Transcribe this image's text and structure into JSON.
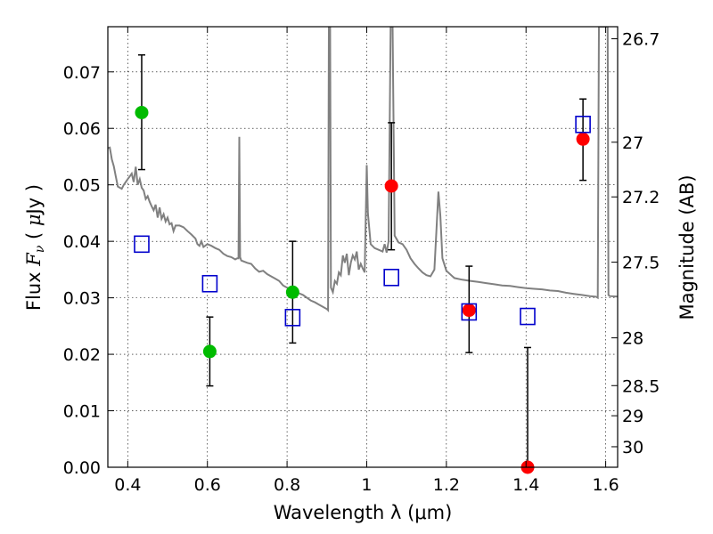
{
  "chart_data": {
    "type": "scatter",
    "xlabel": "Wavelength  λ (μm)",
    "ylabel_parts": [
      "Flux  ",
      "F",
      "ν",
      "  ( ",
      "μ",
      "Jy )"
    ],
    "y2label": "Magnitude (AB)",
    "xlim": [
      0.35,
      1.63
    ],
    "ylim": [
      0.0,
      0.078
    ],
    "grid": true,
    "x_ticks": [
      {
        "v": 0.4,
        "label": "0.4"
      },
      {
        "v": 0.6,
        "label": "0.6"
      },
      {
        "v": 0.8,
        "label": "0.8"
      },
      {
        "v": 1.0,
        "label": "1"
      },
      {
        "v": 1.2,
        "label": "1.2"
      },
      {
        "v": 1.4,
        "label": "1.4"
      },
      {
        "v": 1.6,
        "label": "1.6"
      }
    ],
    "y_ticks": [
      {
        "v": 0.0,
        "label": "0.00"
      },
      {
        "v": 0.01,
        "label": "0.01"
      },
      {
        "v": 0.02,
        "label": "0.02"
      },
      {
        "v": 0.03,
        "label": "0.03"
      },
      {
        "v": 0.04,
        "label": "0.04"
      },
      {
        "v": 0.05,
        "label": "0.05"
      },
      {
        "v": 0.06,
        "label": "0.06"
      },
      {
        "v": 0.07,
        "label": "0.07"
      }
    ],
    "y2_ticks": [
      {
        "mag": 26.7,
        "label": "26.7"
      },
      {
        "mag": 27.0,
        "label": "27"
      },
      {
        "mag": 27.2,
        "label": "27.2"
      },
      {
        "mag": 27.5,
        "label": "27.5"
      },
      {
        "mag": 28.0,
        "label": "28"
      },
      {
        "mag": 28.5,
        "label": "28.5"
      },
      {
        "mag": 29.0,
        "label": "29"
      },
      {
        "mag": 30.0,
        "label": "30"
      }
    ],
    "series": [
      {
        "marker": "circle",
        "color": "#00bb00",
        "points": [
          {
            "x": 0.435,
            "y": 0.0628,
            "lo": 0.0527,
            "hi": 0.073
          },
          {
            "x": 0.606,
            "y": 0.0205,
            "lo": 0.0144,
            "hi": 0.0266
          },
          {
            "x": 0.814,
            "y": 0.031,
            "lo": 0.022,
            "hi": 0.04
          }
        ]
      },
      {
        "marker": "circle",
        "color": "#ff0000",
        "points": [
          {
            "x": 1.062,
            "y": 0.0498,
            "lo": 0.0385,
            "hi": 0.061
          },
          {
            "x": 1.257,
            "y": 0.0278,
            "lo": 0.0203,
            "hi": 0.0356
          },
          {
            "x": 1.404,
            "y": 0.0,
            "lo": 0.0,
            "hi": 0.0212
          },
          {
            "x": 1.543,
            "y": 0.0581,
            "lo": 0.0508,
            "hi": 0.0652
          }
        ]
      },
      {
        "marker": "open-square",
        "color": "#0000cc",
        "points": [
          {
            "x": 0.435,
            "y": 0.0395
          },
          {
            "x": 0.606,
            "y": 0.0325
          },
          {
            "x": 0.814,
            "y": 0.0265
          },
          {
            "x": 1.062,
            "y": 0.0336
          },
          {
            "x": 1.257,
            "y": 0.0275
          },
          {
            "x": 1.404,
            "y": 0.0267
          },
          {
            "x": 1.543,
            "y": 0.0607
          }
        ]
      }
    ],
    "model_sed": {
      "color": "#808080",
      "points": [
        [
          0.35,
          0.0565
        ],
        [
          0.355,
          0.0566
        ],
        [
          0.36,
          0.0545
        ],
        [
          0.365,
          0.0533
        ],
        [
          0.37,
          0.0515
        ],
        [
          0.375,
          0.0497
        ],
        [
          0.38,
          0.0495
        ],
        [
          0.385,
          0.0493
        ],
        [
          0.39,
          0.05
        ],
        [
          0.395,
          0.0505
        ],
        [
          0.4,
          0.051
        ],
        [
          0.405,
          0.0515
        ],
        [
          0.41,
          0.052
        ],
        [
          0.415,
          0.0505
        ],
        [
          0.42,
          0.0532
        ],
        [
          0.425,
          0.05
        ],
        [
          0.43,
          0.051
        ],
        [
          0.435,
          0.0495
        ],
        [
          0.44,
          0.049
        ],
        [
          0.445,
          0.0475
        ],
        [
          0.45,
          0.048
        ],
        [
          0.455,
          0.047
        ],
        [
          0.46,
          0.0462
        ],
        [
          0.465,
          0.0455
        ],
        [
          0.47,
          0.0465
        ],
        [
          0.475,
          0.0442
        ],
        [
          0.48,
          0.046
        ],
        [
          0.485,
          0.044
        ],
        [
          0.49,
          0.0448
        ],
        [
          0.495,
          0.0435
        ],
        [
          0.5,
          0.0442
        ],
        [
          0.505,
          0.043
        ],
        [
          0.51,
          0.0432
        ],
        [
          0.515,
          0.0418
        ],
        [
          0.52,
          0.0428
        ],
        [
          0.53,
          0.0428
        ],
        [
          0.54,
          0.0425
        ],
        [
          0.55,
          0.0418
        ],
        [
          0.56,
          0.0412
        ],
        [
          0.57,
          0.0405
        ],
        [
          0.575,
          0.0395
        ],
        [
          0.58,
          0.0392
        ],
        [
          0.585,
          0.04
        ],
        [
          0.59,
          0.039
        ],
        [
          0.6,
          0.0395
        ],
        [
          0.61,
          0.0392
        ],
        [
          0.62,
          0.0388
        ],
        [
          0.63,
          0.0385
        ],
        [
          0.64,
          0.0378
        ],
        [
          0.65,
          0.0374
        ],
        [
          0.66,
          0.0372
        ],
        [
          0.67,
          0.0368
        ],
        [
          0.675,
          0.037
        ],
        [
          0.678,
          0.037
        ],
        [
          0.68,
          0.0585
        ],
        [
          0.682,
          0.0372
        ],
        [
          0.685,
          0.0366
        ],
        [
          0.7,
          0.0362
        ],
        [
          0.71,
          0.036
        ],
        [
          0.72,
          0.0352
        ],
        [
          0.73,
          0.0346
        ],
        [
          0.74,
          0.0348
        ],
        [
          0.75,
          0.0342
        ],
        [
          0.76,
          0.0338
        ],
        [
          0.77,
          0.0334
        ],
        [
          0.78,
          0.033
        ],
        [
          0.79,
          0.0322
        ],
        [
          0.8,
          0.0318
        ],
        [
          0.81,
          0.0315
        ],
        [
          0.82,
          0.0312
        ],
        [
          0.83,
          0.0308
        ],
        [
          0.84,
          0.0305
        ],
        [
          0.85,
          0.03
        ],
        [
          0.86,
          0.0295
        ],
        [
          0.87,
          0.0292
        ],
        [
          0.88,
          0.0288
        ],
        [
          0.89,
          0.0284
        ],
        [
          0.9,
          0.028
        ],
        [
          0.903,
          0.0278
        ],
        [
          0.905,
          0.078
        ],
        [
          0.908,
          0.078
        ],
        [
          0.91,
          0.0318
        ],
        [
          0.915,
          0.031
        ],
        [
          0.92,
          0.033
        ],
        [
          0.925,
          0.0325
        ],
        [
          0.93,
          0.0345
        ],
        [
          0.935,
          0.034
        ],
        [
          0.94,
          0.0375
        ],
        [
          0.945,
          0.0362
        ],
        [
          0.95,
          0.0378
        ],
        [
          0.955,
          0.034
        ],
        [
          0.96,
          0.0362
        ],
        [
          0.965,
          0.0375
        ],
        [
          0.97,
          0.0368
        ],
        [
          0.975,
          0.0382
        ],
        [
          0.98,
          0.035
        ],
        [
          0.985,
          0.036
        ],
        [
          0.99,
          0.0352
        ],
        [
          0.995,
          0.0345
        ],
        [
          1.0,
          0.0535
        ],
        [
          1.003,
          0.045
        ],
        [
          1.01,
          0.0395
        ],
        [
          1.02,
          0.0388
        ],
        [
          1.03,
          0.0385
        ],
        [
          1.04,
          0.0382
        ],
        [
          1.045,
          0.0395
        ],
        [
          1.05,
          0.038
        ],
        [
          1.055,
          0.04
        ],
        [
          1.06,
          0.078
        ],
        [
          1.065,
          0.078
        ],
        [
          1.07,
          0.041
        ],
        [
          1.08,
          0.0398
        ],
        [
          1.09,
          0.0395
        ],
        [
          1.1,
          0.0385
        ],
        [
          1.11,
          0.037
        ],
        [
          1.12,
          0.036
        ],
        [
          1.13,
          0.0352
        ],
        [
          1.14,
          0.0345
        ],
        [
          1.15,
          0.034
        ],
        [
          1.16,
          0.0338
        ],
        [
          1.17,
          0.035
        ],
        [
          1.175,
          0.042
        ],
        [
          1.18,
          0.0488
        ],
        [
          1.185,
          0.0445
        ],
        [
          1.19,
          0.037
        ],
        [
          1.2,
          0.0348
        ],
        [
          1.22,
          0.0335
        ],
        [
          1.24,
          0.0332
        ],
        [
          1.26,
          0.033
        ],
        [
          1.28,
          0.0328
        ],
        [
          1.3,
          0.0326
        ],
        [
          1.32,
          0.0324
        ],
        [
          1.34,
          0.0322
        ],
        [
          1.36,
          0.0321
        ],
        [
          1.38,
          0.0319
        ],
        [
          1.4,
          0.0317
        ],
        [
          1.42,
          0.0316
        ],
        [
          1.44,
          0.0315
        ],
        [
          1.46,
          0.0313
        ],
        [
          1.48,
          0.0312
        ],
        [
          1.5,
          0.0309
        ],
        [
          1.52,
          0.0307
        ],
        [
          1.54,
          0.0305
        ],
        [
          1.56,
          0.0303
        ],
        [
          1.575,
          0.0302
        ],
        [
          1.58,
          0.03
        ],
        [
          1.583,
          0.078
        ],
        [
          1.605,
          0.078
        ],
        [
          1.607,
          0.0305
        ],
        [
          1.61,
          0.0303
        ],
        [
          1.63,
          0.0302
        ]
      ]
    }
  }
}
